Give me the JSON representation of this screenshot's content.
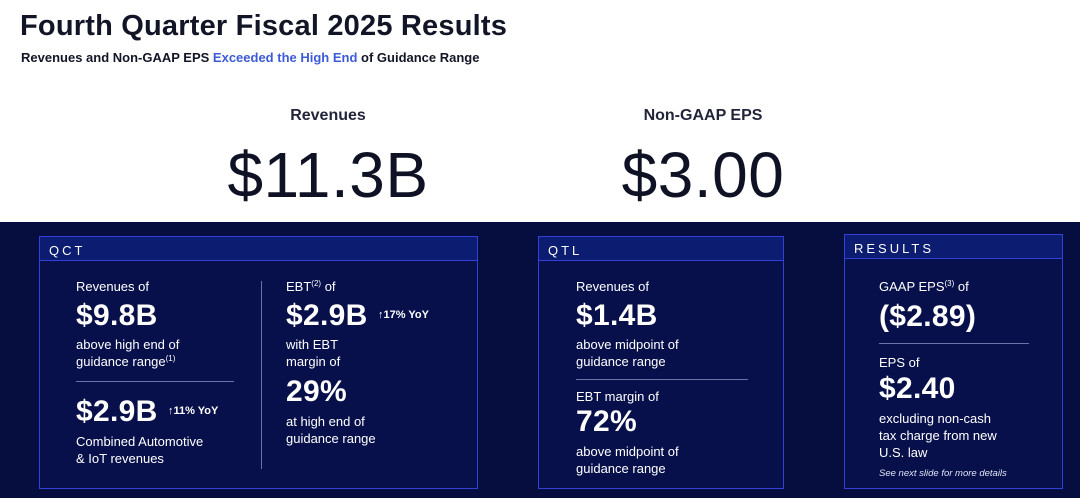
{
  "header": {
    "title": "Fourth Quarter Fiscal 2025 Results",
    "subtitle_pre": "Revenues and Non-GAAP EPS ",
    "subtitle_highlight": "Exceeded the High End",
    "subtitle_post": " of Guidance Range"
  },
  "headline": {
    "revenues_label": "Revenues",
    "revenues_value": "$11.3B",
    "eps_label": "Non-GAAP EPS",
    "eps_value": "$3.00"
  },
  "qct": {
    "heading": "QCT",
    "revenues_label": "Revenues of",
    "revenues_value": "$9.8B",
    "revenues_desc_1": "above high end of",
    "revenues_desc_2": "guidance range",
    "revenues_desc_sup": "(1)",
    "auto_value": "$2.9B",
    "auto_yoy": "↑11% YoY",
    "auto_desc_1": "Combined Automotive",
    "auto_desc_2": "& IoT revenues",
    "ebt_label": "EBT",
    "ebt_sup": "(2)",
    "ebt_label_post": " of",
    "ebt_value": "$2.9B",
    "ebt_yoy": "↑17% YoY",
    "ebt_desc_1": "with EBT",
    "ebt_desc_2": "margin of",
    "margin_value": "29%",
    "margin_desc_1": "at high end of",
    "margin_desc_2": "guidance range"
  },
  "qtl": {
    "heading": "QTL",
    "revenues_label": "Revenues of",
    "revenues_value": "$1.4B",
    "revenues_desc_1": "above midpoint of",
    "revenues_desc_2": "guidance range",
    "margin_label": "EBT margin of",
    "margin_value": "72%",
    "margin_desc_1": "above midpoint of",
    "margin_desc_2": "guidance range"
  },
  "results": {
    "heading": "RESULTS",
    "gaap_label": "GAAP EPS",
    "gaap_sup": "(3)",
    "gaap_label_post": " of",
    "gaap_value": "($2.89)",
    "eps_label": "EPS of",
    "eps_value": "$2.40",
    "eps_desc_1": "excluding non-cash",
    "eps_desc_2": "tax charge from new",
    "eps_desc_3": "U.S. law",
    "note": "See next slide for more details"
  }
}
